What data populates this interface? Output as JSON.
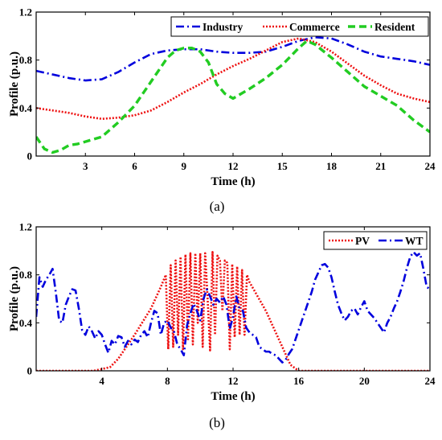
{
  "chart_data": [
    {
      "type": "line",
      "panel_label": "(a)",
      "xlabel": "Time  (h)",
      "ylabel": "Profile  (p.u.)",
      "xlim": [
        0,
        24
      ],
      "ylim": [
        0,
        1.2
      ],
      "xticks": [
        3,
        6,
        9,
        12,
        15,
        18,
        21,
        24
      ],
      "yticks": [
        0,
        0.4,
        0.8,
        1.2
      ],
      "ytick_labels": [
        "0",
        "0.4",
        "0.8",
        "1.2"
      ],
      "grid": false,
      "legend_position": "top-right",
      "legend_orientation": "horizontal",
      "series": [
        {
          "name": "Industry",
          "color": "#0000dd",
          "dash": "dash-dot",
          "x": [
            0,
            1,
            2,
            3,
            4,
            5,
            6,
            7,
            8,
            9,
            10,
            11,
            12,
            13,
            14,
            15,
            16,
            17,
            18,
            19,
            20,
            21,
            22,
            23,
            24
          ],
          "y": [
            0.71,
            0.68,
            0.65,
            0.63,
            0.64,
            0.7,
            0.78,
            0.85,
            0.88,
            0.89,
            0.89,
            0.87,
            0.86,
            0.86,
            0.87,
            0.91,
            0.96,
            0.99,
            0.98,
            0.93,
            0.87,
            0.83,
            0.81,
            0.79,
            0.76
          ]
        },
        {
          "name": "Commerce",
          "color": "#ee1111",
          "dash": "dotted",
          "x": [
            0,
            1,
            2,
            3,
            4,
            5,
            6,
            7,
            8,
            9,
            10,
            11,
            12,
            13,
            14,
            15,
            16,
            17,
            18,
            19,
            20,
            21,
            22,
            23,
            24
          ],
          "y": [
            0.4,
            0.38,
            0.36,
            0.33,
            0.31,
            0.32,
            0.34,
            0.38,
            0.45,
            0.53,
            0.6,
            0.68,
            0.75,
            0.81,
            0.88,
            0.95,
            0.98,
            0.95,
            0.87,
            0.77,
            0.67,
            0.59,
            0.52,
            0.48,
            0.45
          ]
        },
        {
          "name": "Resident",
          "color": "#22cc22",
          "dash": "dashed",
          "x": [
            0,
            0.5,
            1,
            1.5,
            2,
            2.5,
            3,
            3.5,
            4,
            5,
            6,
            7,
            8,
            8.5,
            9,
            9.5,
            10,
            10.5,
            11,
            11.5,
            12,
            13,
            14,
            15,
            16,
            16.5,
            17,
            18,
            19,
            20,
            21,
            22,
            23,
            24
          ],
          "y": [
            0.16,
            0.06,
            0.03,
            0.05,
            0.09,
            0.1,
            0.12,
            0.14,
            0.16,
            0.28,
            0.42,
            0.62,
            0.82,
            0.88,
            0.9,
            0.9,
            0.87,
            0.78,
            0.6,
            0.52,
            0.48,
            0.56,
            0.65,
            0.76,
            0.9,
            0.96,
            0.93,
            0.82,
            0.7,
            0.58,
            0.5,
            0.42,
            0.3,
            0.2
          ]
        }
      ]
    },
    {
      "type": "line",
      "panel_label": "(b)",
      "xlabel": "Time (h)",
      "ylabel": "Profile (p.u.)",
      "xlim": [
        0,
        24
      ],
      "ylim": [
        0,
        1.2
      ],
      "xticks": [
        4,
        8,
        12,
        16,
        20,
        24
      ],
      "yticks": [
        0,
        0.4,
        0.8,
        1.2
      ],
      "ytick_labels": [
        "0",
        "0.4",
        "0.8",
        "1.2"
      ],
      "grid": false,
      "legend_position": "top-right",
      "legend_orientation": "horizontal",
      "series": [
        {
          "name": "PV",
          "color": "#ee1111",
          "dash": "dotted",
          "x": [
            0,
            3.5,
            4.5,
            5,
            6,
            7,
            7.6,
            7.9,
            8.05,
            8.2,
            8.35,
            8.5,
            8.65,
            8.8,
            8.95,
            9.1,
            9.25,
            9.4,
            9.55,
            9.7,
            9.85,
            10,
            10.15,
            10.3,
            10.45,
            10.6,
            10.75,
            10.9,
            11.05,
            11.2,
            11.35,
            11.5,
            11.65,
            11.8,
            11.95,
            12.1,
            12.25,
            12.4,
            12.55,
            12.7,
            12.85,
            13,
            14,
            15,
            15.5,
            16,
            24
          ],
          "y": [
            0,
            0,
            0.03,
            0.1,
            0.3,
            0.52,
            0.7,
            0.8,
            0.18,
            0.88,
            0.2,
            0.92,
            0.3,
            0.95,
            0.18,
            0.97,
            0.25,
            0.98,
            0.22,
            0.98,
            0.4,
            0.98,
            0.2,
            0.98,
            0.6,
            0.17,
            0.99,
            0.3,
            0.96,
            0.92,
            0.5,
            0.92,
            0.9,
            0.18,
            0.89,
            0.28,
            0.87,
            0.3,
            0.84,
            0.3,
            0.8,
            0.74,
            0.5,
            0.2,
            0.05,
            0,
            0
          ]
        },
        {
          "name": "WT",
          "color": "#0000dd",
          "dash": "dash-dot",
          "x": [
            0,
            0.2,
            0.4,
            0.6,
            0.8,
            1.0,
            1.2,
            1.4,
            1.6,
            1.8,
            2.0,
            2.2,
            2.4,
            2.6,
            2.8,
            3.0,
            3.2,
            3.4,
            3.6,
            3.8,
            4.0,
            4.2,
            4.4,
            4.6,
            4.8,
            5.0,
            5.2,
            5.4,
            5.6,
            5.8,
            6.0,
            6.2,
            6.4,
            6.6,
            6.8,
            7.0,
            7.2,
            7.4,
            7.6,
            7.8,
            8.0,
            8.2,
            8.4,
            8.6,
            8.8,
            9.0,
            9.2,
            9.4,
            9.6,
            9.8,
            10.0,
            10.2,
            10.4,
            10.6,
            10.8,
            11.0,
            11.2,
            11.4,
            11.6,
            11.8,
            12.0,
            12.2,
            12.4,
            12.6,
            12.8,
            13.0,
            13.2,
            13.4,
            13.6,
            13.8,
            14.0,
            14.2,
            14.4,
            14.6,
            14.8,
            15.0,
            15.2,
            15.4,
            15.6,
            15.8,
            16.0,
            16.2,
            16.4,
            16.6,
            16.8,
            17.0,
            17.2,
            17.4,
            17.6,
            17.8,
            18.0,
            18.2,
            18.4,
            18.6,
            18.8,
            19.0,
            19.2,
            19.4,
            19.6,
            19.8,
            20.0,
            20.2,
            20.4,
            20.6,
            20.8,
            21.0,
            21.2,
            21.4,
            21.6,
            21.8,
            22.0,
            22.2,
            22.4,
            22.6,
            22.8,
            23.0,
            23.2,
            23.4,
            23.6,
            23.8,
            24.0
          ],
          "y": [
            0.45,
            0.78,
            0.7,
            0.76,
            0.8,
            0.85,
            0.65,
            0.42,
            0.4,
            0.55,
            0.62,
            0.68,
            0.67,
            0.52,
            0.34,
            0.3,
            0.37,
            0.33,
            0.27,
            0.33,
            0.3,
            0.22,
            0.15,
            0.25,
            0.22,
            0.29,
            0.28,
            0.2,
            0.25,
            0.22,
            0.26,
            0.24,
            0.3,
            0.33,
            0.28,
            0.4,
            0.5,
            0.48,
            0.3,
            0.4,
            0.42,
            0.36,
            0.33,
            0.22,
            0.18,
            0.13,
            0.38,
            0.48,
            0.56,
            0.5,
            0.42,
            0.6,
            0.68,
            0.62,
            0.55,
            0.6,
            0.57,
            0.62,
            0.55,
            0.35,
            0.45,
            0.62,
            0.52,
            0.5,
            0.36,
            0.32,
            0.3,
            0.28,
            0.2,
            0.18,
            0.16,
            0.16,
            0.14,
            0.13,
            0.1,
            0.07,
            0.09,
            0.14,
            0.18,
            0.26,
            0.34,
            0.42,
            0.5,
            0.58,
            0.66,
            0.76,
            0.82,
            0.88,
            0.89,
            0.86,
            0.78,
            0.66,
            0.55,
            0.48,
            0.42,
            0.45,
            0.5,
            0.52,
            0.47,
            0.53,
            0.58,
            0.5,
            0.47,
            0.44,
            0.4,
            0.36,
            0.32,
            0.4,
            0.45,
            0.52,
            0.58,
            0.66,
            0.75,
            0.86,
            0.95,
            0.99,
            0.96,
            0.98,
            0.85,
            0.7,
            0.68
          ]
        }
      ]
    }
  ]
}
